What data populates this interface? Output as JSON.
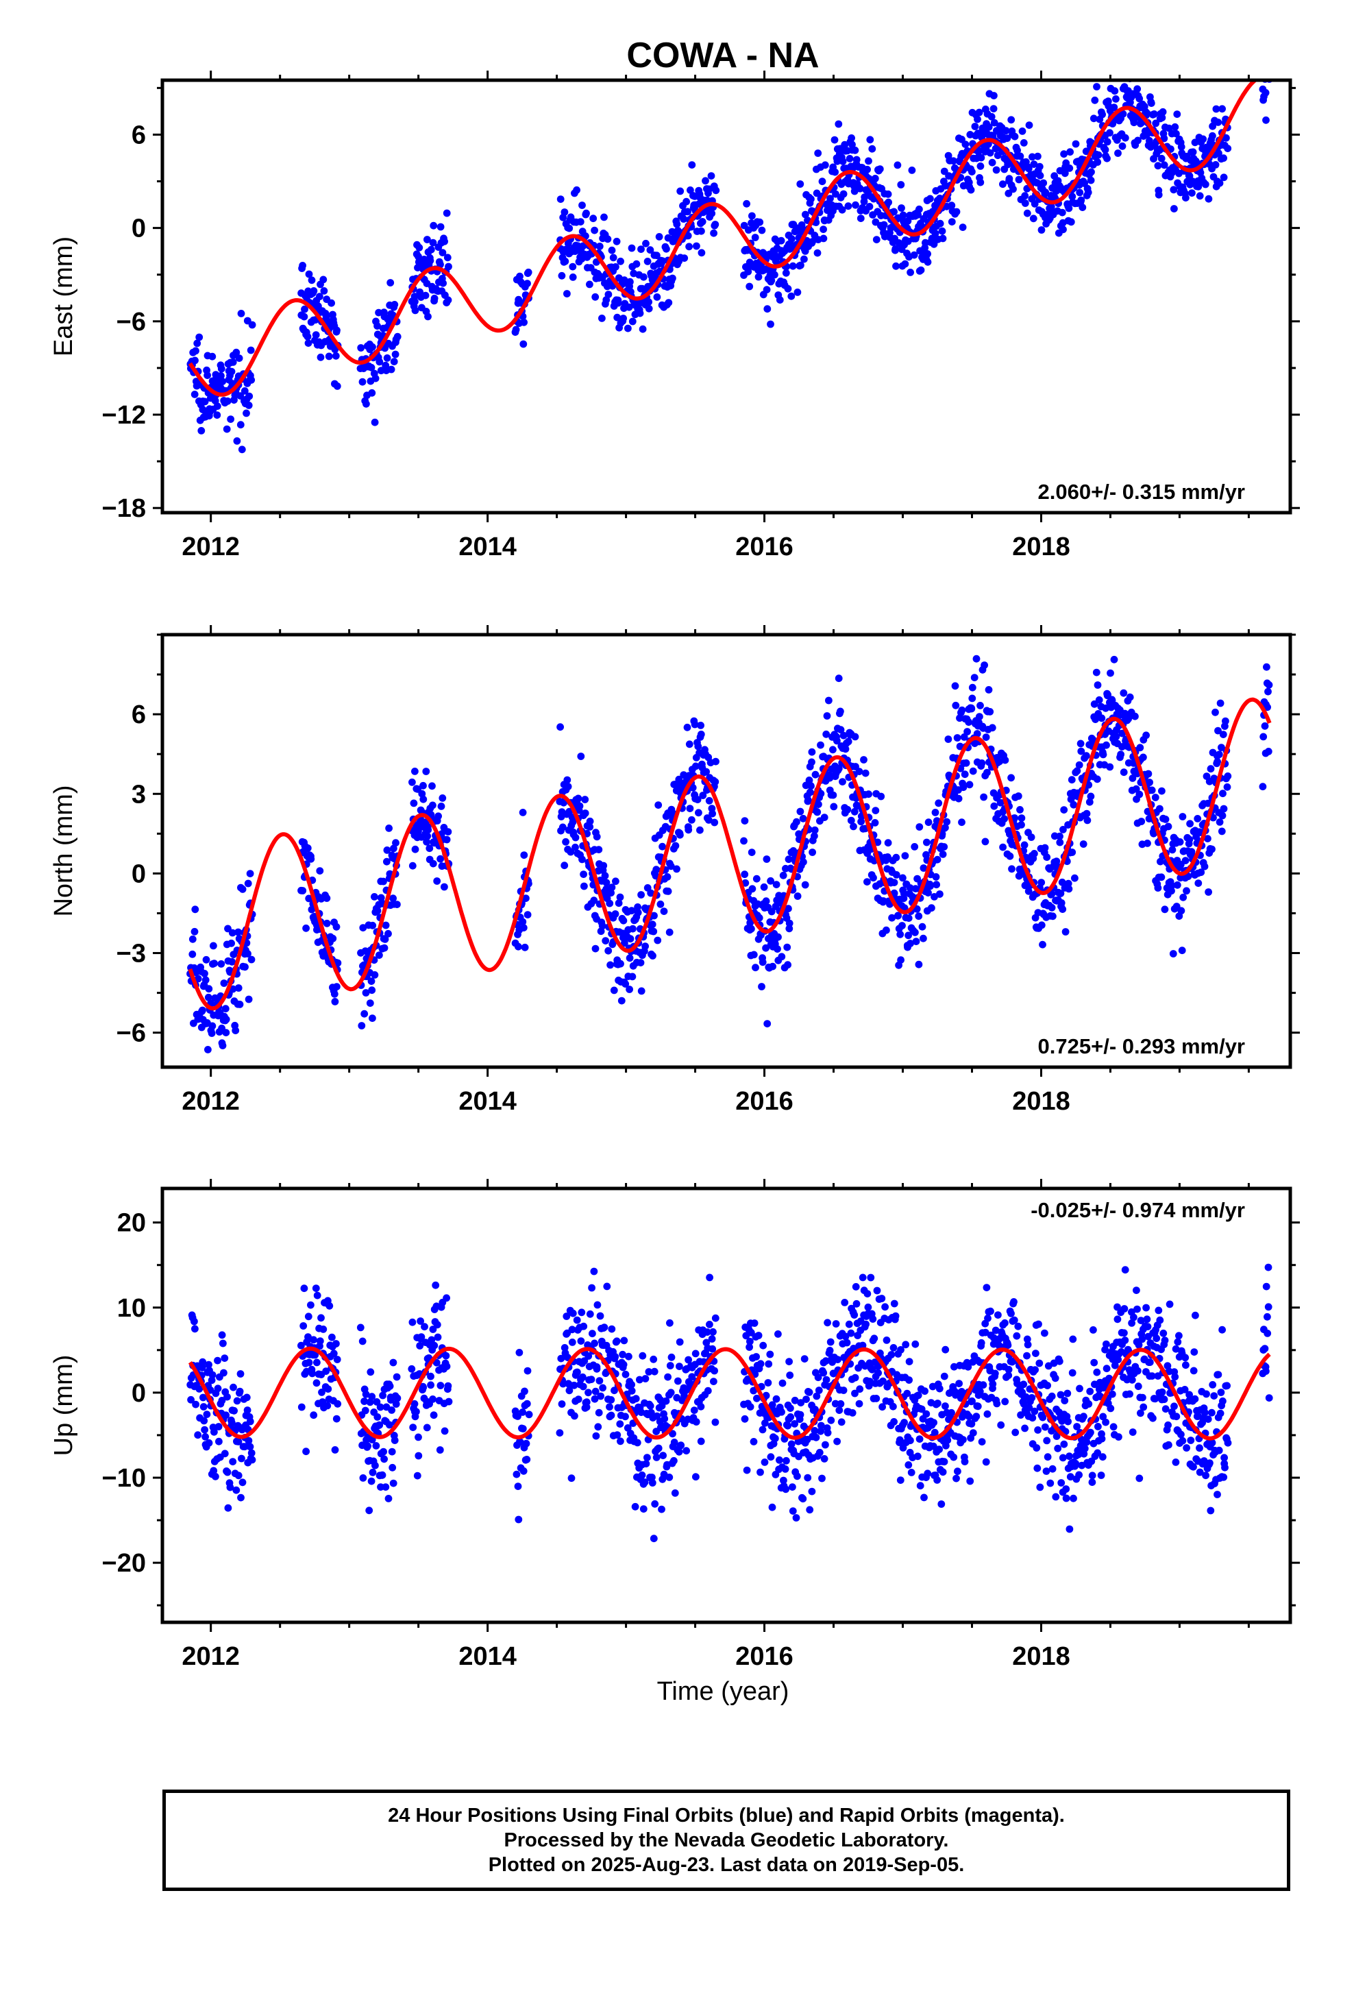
{
  "figure": {
    "title": "COWA - NA",
    "xlabel": "Time (year)"
  },
  "colors": {
    "points": "#0000ff",
    "model": "#ff0000",
    "frame": "#000000"
  },
  "chart_data": [
    {
      "type": "scatter",
      "title": "COWA - NA",
      "ylabel": "East (mm)",
      "xlim": [
        2011.65,
        2019.8
      ],
      "ylim": [
        -18.3,
        9.5
      ],
      "xticks": [
        2012,
        2014,
        2016,
        2018
      ],
      "xtick_labels": [
        "2012",
        "2014",
        "2016",
        "2018"
      ],
      "yticks": [
        -18,
        -12,
        -6,
        0,
        6
      ],
      "ytick_labels": [
        "−18",
        "−12",
        "−6",
        "0",
        "6"
      ],
      "rate_label": "2.060+/- 0.315 mm/yr",
      "rate_position": "bottom-right",
      "data_coverage": [
        [
          2011.85,
          2012.3
        ],
        [
          2012.65,
          2012.92
        ],
        [
          2013.08,
          2013.35
        ],
        [
          2013.45,
          2013.72
        ],
        [
          2014.2,
          2014.3
        ],
        [
          2014.52,
          2015.65
        ],
        [
          2015.85,
          2019.35
        ],
        [
          2019.6,
          2019.65
        ]
      ],
      "trend": {
        "slope_mm_per_yr": 2.06,
        "intercept_at_t0": -8.4,
        "t0": 2012.0,
        "annual_amp": 2.5,
        "phase_peak_frac": 0.6,
        "scatter_sd": 1.3
      },
      "series": [
        {
          "name": "Final Orbits (blue)",
          "kind": "points"
        },
        {
          "name": "",
          "kind": "model-fit"
        }
      ]
    },
    {
      "type": "scatter",
      "ylabel": "North (mm)",
      "xlim": [
        2011.65,
        2019.8
      ],
      "ylim": [
        -7.3,
        9.0
      ],
      "xticks": [
        2012,
        2014,
        2016,
        2018
      ],
      "xtick_labels": [
        "2012",
        "2014",
        "2016",
        "2018"
      ],
      "yticks": [
        -6,
        -3,
        0,
        3,
        6
      ],
      "ytick_labels": [
        "−6",
        "−3",
        "0",
        "3",
        "6"
      ],
      "rate_label": "0.725+/- 0.293 mm/yr",
      "rate_position": "bottom-right",
      "data_coverage": [
        [
          2011.85,
          2012.3
        ],
        [
          2012.65,
          2012.92
        ],
        [
          2013.08,
          2013.35
        ],
        [
          2013.45,
          2013.72
        ],
        [
          2014.2,
          2014.3
        ],
        [
          2014.52,
          2015.65
        ],
        [
          2015.85,
          2019.35
        ],
        [
          2019.6,
          2019.65
        ]
      ],
      "trend": {
        "slope_mm_per_yr": 0.725,
        "intercept_at_t0": -2.0,
        "t0": 2012.0,
        "annual_amp": 3.1,
        "phase_peak_frac": 0.52,
        "scatter_sd": 1.1
      },
      "series": [
        {
          "name": "Final Orbits (blue)",
          "kind": "points"
        },
        {
          "name": "",
          "kind": "model-fit"
        }
      ]
    },
    {
      "type": "scatter",
      "ylabel": "Up (mm)",
      "xlim": [
        2011.65,
        2019.8
      ],
      "ylim": [
        -27.0,
        24.0
      ],
      "xticks": [
        2012,
        2014,
        2016,
        2018
      ],
      "xtick_labels": [
        "2012",
        "2014",
        "2016",
        "2018"
      ],
      "yticks": [
        -20,
        -10,
        0,
        10,
        20
      ],
      "ytick_labels": [
        "−20",
        "−10",
        "0",
        "10",
        "20"
      ],
      "rate_label": "-0.025+/- 0.974 mm/yr",
      "rate_position": "top-right",
      "data_coverage": [
        [
          2011.85,
          2012.3
        ],
        [
          2012.65,
          2012.92
        ],
        [
          2013.08,
          2013.35
        ],
        [
          2013.45,
          2013.72
        ],
        [
          2014.2,
          2014.3
        ],
        [
          2014.52,
          2015.65
        ],
        [
          2015.85,
          2019.35
        ],
        [
          2019.6,
          2019.65
        ]
      ],
      "trend": {
        "slope_mm_per_yr": -0.025,
        "intercept_at_t0": 0.0,
        "t0": 2012.0,
        "annual_amp": 5.2,
        "phase_peak_frac": 0.72,
        "scatter_sd": 4.2
      },
      "series": [
        {
          "name": "Final Orbits (blue)",
          "kind": "points"
        },
        {
          "name": "",
          "kind": "model-fit"
        }
      ]
    }
  ],
  "footer": {
    "line1": "24 Hour Positions Using Final Orbits (blue) and Rapid Orbits (magenta).",
    "line2": "Processed by the Nevada Geodetic Laboratory.",
    "line3": "Plotted on 2025-Aug-23. Last data on 2019-Sep-05."
  }
}
